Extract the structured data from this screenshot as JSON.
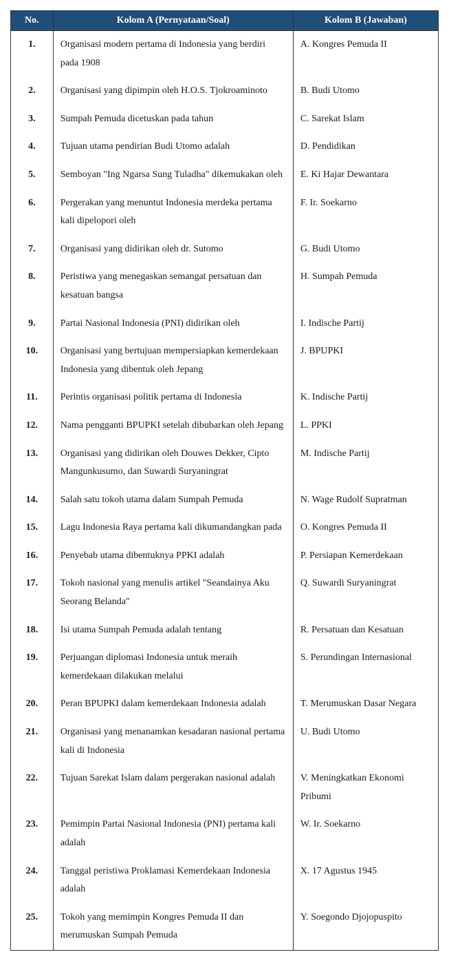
{
  "table": {
    "header_bg": "#1f4e79",
    "header_color": "#ffffff",
    "border_color": "#333333",
    "columns": {
      "no": "No.",
      "a": "Kolom A (Pernyataan/Soal)",
      "b": "Kolom B (Jawaban)"
    },
    "rows": [
      {
        "no": "1.",
        "a": "Organisasi modern pertama di Indonesia yang berdiri pada 1908",
        "b": "A. Kongres Pemuda II"
      },
      {
        "no": "2.",
        "a": "Organisasi yang dipimpin oleh H.O.S. Tjokroaminoto",
        "b": "B. Budi Utomo"
      },
      {
        "no": "3.",
        "a": "Sumpah Pemuda dicetuskan pada tahun",
        "b": "C. Sarekat Islam"
      },
      {
        "no": "4.",
        "a": "Tujuan utama pendirian Budi Utomo adalah",
        "b": "D. Pendidikan"
      },
      {
        "no": "5.",
        "a": "Semboyan \"Ing Ngarsa Sung Tuladha\" dikemukakan oleh",
        "b": "E. Ki Hajar Dewantara"
      },
      {
        "no": "6.",
        "a": "Pergerakan yang menuntut Indonesia merdeka pertama kali dipelopori oleh",
        "b": "F. Ir. Soekarno"
      },
      {
        "no": "7.",
        "a": "Organisasi yang didirikan oleh dr. Sutomo",
        "b": "G. Budi Utomo"
      },
      {
        "no": "8.",
        "a": "Peristiwa yang menegaskan semangat persatuan dan kesatuan bangsa",
        "b": "H. Sumpah Pemuda"
      },
      {
        "no": "9.",
        "a": "Partai Nasional Indonesia (PNI) didirikan oleh",
        "b": "I. Indische Partij"
      },
      {
        "no": "10.",
        "a": "Organisasi yang bertujuan mempersiapkan kemerdekaan Indonesia yang dibentuk oleh Jepang",
        "b": "J. BPUPKI"
      },
      {
        "no": "11.",
        "a": "Perintis organisasi politik pertama di Indonesia",
        "b": "K. Indische Partij"
      },
      {
        "no": "12.",
        "a": "Nama pengganti BPUPKI setelah dibubarkan oleh Jepang",
        "b": "L. PPKI"
      },
      {
        "no": "13.",
        "a": "Organisasi yang didirikan oleh Douwes Dekker, Cipto Mangunkusumo, dan Suwardi Suryaningrat",
        "b": "M. Indische Partij"
      },
      {
        "no": "14.",
        "a": "Salah satu tokoh utama dalam Sumpah Pemuda",
        "b": "N. Wage Rudolf Supratman"
      },
      {
        "no": "15.",
        "a": "Lagu Indonesia Raya pertama kali dikumandangkan pada",
        "b": "O. Kongres Pemuda II"
      },
      {
        "no": "16.",
        "a": "Penyebab utama dibentuknya PPKI adalah",
        "b": "P. Persiapan Kemerdekaan"
      },
      {
        "no": "17.",
        "a": "Tokoh nasional yang menulis artikel \"Seandainya Aku Seorang Belanda\"",
        "b": "Q. Suwardi Suryaningrat"
      },
      {
        "no": "18.",
        "a": "Isi utama Sumpah Pemuda adalah tentang",
        "b": "R. Persatuan dan Kesatuan"
      },
      {
        "no": "19.",
        "a": "Perjuangan diplomasi Indonesia untuk meraih kemerdekaan dilakukan melalui",
        "b": "S. Perundingan Internasional"
      },
      {
        "no": "20.",
        "a": "Peran BPUPKI dalam kemerdekaan Indonesia adalah",
        "b": "T. Merumuskan Dasar Negara"
      },
      {
        "no": "21.",
        "a": "Organisasi yang menanamkan kesadaran nasional pertama kali di Indonesia",
        "b": "U. Budi Utomo"
      },
      {
        "no": "22.",
        "a": "Tujuan Sarekat Islam dalam pergerakan nasional adalah",
        "b": "V. Meningkatkan Ekonomi Pribumi"
      },
      {
        "no": "23.",
        "a": "Pemimpin Partai Nasional Indonesia (PNI) pertama kali adalah",
        "b": "W. Ir. Soekarno"
      },
      {
        "no": "24.",
        "a": "Tanggal peristiwa Proklamasi Kemerdekaan Indonesia adalah",
        "b": "X. 17 Agustus 1945"
      },
      {
        "no": "25.",
        "a": "Tokoh yang memimpin Kongres Pemuda II dan merumuskan Sumpah Pemuda",
        "b": "Y. Soegondo Djojopuspito"
      }
    ]
  }
}
